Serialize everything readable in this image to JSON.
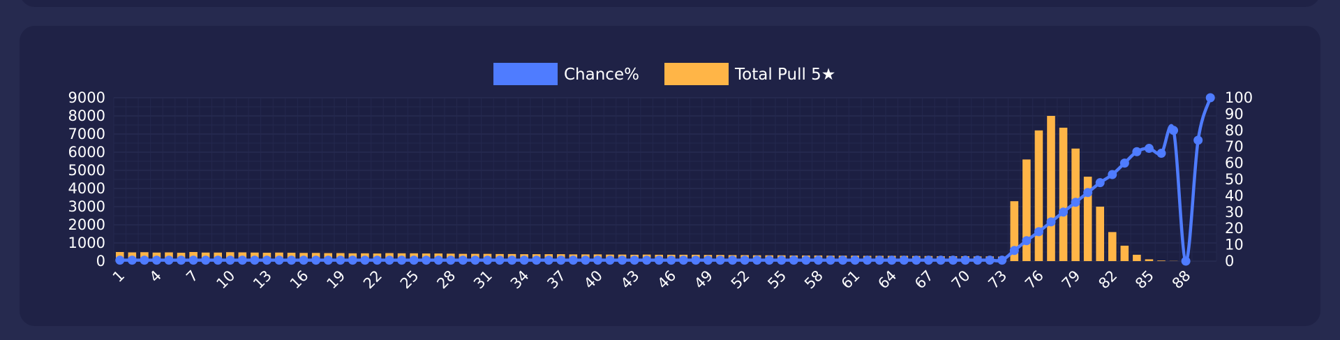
{
  "chart_data": {
    "type": "bar+line",
    "title": "",
    "legend": {
      "placement": "top-center",
      "entries": [
        {
          "label": "Chance%",
          "color": "#4f7cff"
        },
        {
          "label": "Total Pull 5★",
          "color": "#ffb547"
        }
      ]
    },
    "x": [
      1,
      2,
      3,
      4,
      5,
      6,
      7,
      8,
      9,
      10,
      11,
      12,
      13,
      14,
      15,
      16,
      17,
      18,
      19,
      20,
      21,
      22,
      23,
      24,
      25,
      26,
      27,
      28,
      29,
      30,
      31,
      32,
      33,
      34,
      35,
      36,
      37,
      38,
      39,
      40,
      41,
      42,
      43,
      44,
      45,
      46,
      47,
      48,
      49,
      50,
      51,
      52,
      53,
      54,
      55,
      56,
      57,
      58,
      59,
      60,
      61,
      62,
      63,
      64,
      65,
      66,
      67,
      68,
      69,
      70,
      71,
      72,
      73,
      74,
      75,
      76,
      77,
      78,
      79,
      80,
      81,
      82,
      83,
      84,
      85,
      86,
      87,
      88,
      89,
      90
    ],
    "x_tick_labels": [
      "1",
      "4",
      "7",
      "10",
      "13",
      "16",
      "19",
      "22",
      "25",
      "28",
      "31",
      "34",
      "37",
      "40",
      "43",
      "46",
      "49",
      "52",
      "55",
      "58",
      "61",
      "64",
      "67",
      "70",
      "73",
      "76",
      "79",
      "82",
      "85",
      "88"
    ],
    "x_tick_values": [
      1,
      4,
      7,
      10,
      13,
      16,
      19,
      22,
      25,
      28,
      31,
      34,
      37,
      40,
      43,
      46,
      49,
      52,
      55,
      58,
      61,
      64,
      67,
      70,
      73,
      76,
      79,
      82,
      85,
      88
    ],
    "y_left": {
      "ylim": [
        0,
        9000
      ],
      "ticks": [
        0,
        1000,
        2000,
        3000,
        4000,
        5000,
        6000,
        7000,
        8000,
        9000
      ],
      "tick_labels": [
        "0",
        "1000",
        "2000",
        "3000",
        "4000",
        "5000",
        "6000",
        "7000",
        "8000",
        "9000"
      ]
    },
    "y_right": {
      "ylim": [
        0,
        100
      ],
      "ticks": [
        0,
        10,
        20,
        30,
        40,
        50,
        60,
        70,
        80,
        90,
        100
      ],
      "tick_labels": [
        "0",
        "10",
        "20",
        "30",
        "40",
        "50",
        "60",
        "70",
        "80",
        "90",
        "100"
      ]
    },
    "grid": true,
    "series": [
      {
        "name": "Total Pull 5★",
        "type": "bar",
        "axis": "left",
        "color": "#ffb547",
        "values": [
          500,
          480,
          490,
          470,
          480,
          460,
          500,
          470,
          470,
          490,
          480,
          470,
          460,
          470,
          460,
          450,
          450,
          440,
          440,
          430,
          430,
          420,
          440,
          430,
          430,
          420,
          420,
          410,
          400,
          400,
          400,
          390,
          390,
          380,
          380,
          380,
          380,
          370,
          370,
          370,
          360,
          360,
          350,
          360,
          350,
          350,
          350,
          350,
          340,
          340,
          330,
          330,
          320,
          320,
          320,
          310,
          310,
          310,
          300,
          300,
          300,
          290,
          290,
          290,
          290,
          280,
          280,
          270,
          270,
          270,
          260,
          260,
          250,
          3300,
          5600,
          7200,
          8000,
          7350,
          6200,
          4650,
          3000,
          1600,
          850,
          350,
          100,
          30,
          10,
          5,
          0,
          0
        ]
      },
      {
        "name": "Chance%",
        "type": "line",
        "axis": "right",
        "color": "#4f7cff",
        "values": [
          0.6,
          0.6,
          0.6,
          0.6,
          0.6,
          0.6,
          0.6,
          0.6,
          0.6,
          0.6,
          0.6,
          0.6,
          0.6,
          0.6,
          0.6,
          0.6,
          0.6,
          0.6,
          0.6,
          0.6,
          0.6,
          0.6,
          0.6,
          0.6,
          0.6,
          0.6,
          0.6,
          0.6,
          0.6,
          0.6,
          0.6,
          0.6,
          0.6,
          0.6,
          0.6,
          0.6,
          0.6,
          0.6,
          0.6,
          0.6,
          0.6,
          0.6,
          0.6,
          0.6,
          0.6,
          0.6,
          0.6,
          0.6,
          0.6,
          0.6,
          0.6,
          0.6,
          0.6,
          0.6,
          0.6,
          0.6,
          0.6,
          0.6,
          0.6,
          0.6,
          0.6,
          0.6,
          0.6,
          0.6,
          0.6,
          0.6,
          0.6,
          0.6,
          0.6,
          0.6,
          0.6,
          0.6,
          0.6,
          6.5,
          12.5,
          18,
          24,
          30,
          36,
          42,
          48,
          53,
          60,
          67,
          69,
          66,
          80,
          0,
          74,
          100
        ]
      }
    ]
  }
}
